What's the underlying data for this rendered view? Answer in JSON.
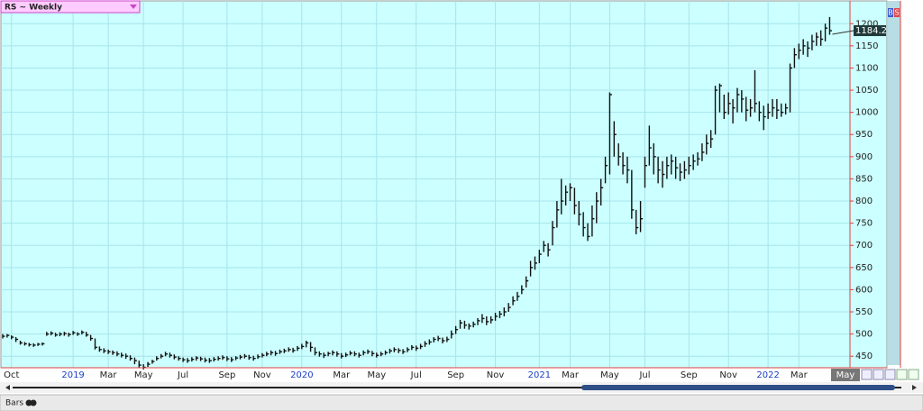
{
  "chart_data": {
    "type": "ohlc",
    "title": "RS ~ Weekly",
    "categories": [
      null,
      null,
      "Oct",
      null,
      null,
      null,
      null,
      null,
      null,
      null,
      null,
      null,
      null,
      null,
      null,
      null,
      "2019",
      null,
      null,
      null,
      null,
      null,
      null,
      null,
      "Mar",
      null,
      null,
      null,
      null,
      null,
      null,
      null,
      "May",
      null,
      null,
      null,
      null,
      null,
      null,
      null,
      null,
      "Jul",
      null,
      null,
      null,
      null,
      null,
      null,
      null,
      null,
      null,
      "Sep",
      null,
      null,
      null,
      null,
      null,
      null,
      null,
      "Nov",
      null,
      null,
      null,
      null,
      null,
      null,
      null,
      null,
      "2020",
      null,
      null,
      null,
      null,
      null,
      null,
      null,
      null,
      "Mar",
      null,
      null,
      null,
      null,
      null,
      null,
      null,
      "May",
      null,
      null,
      null,
      null,
      null,
      null,
      null,
      null,
      "Jul",
      null,
      null,
      null,
      null,
      null,
      null,
      null,
      null,
      "Sep",
      null,
      null,
      null,
      null,
      null,
      null,
      null,
      null,
      "Nov",
      null,
      null,
      null,
      null,
      null,
      null,
      null,
      null,
      null,
      "2021",
      null,
      null,
      null,
      null,
      null,
      null,
      "Mar",
      null,
      null,
      null,
      null,
      null,
      null,
      null,
      null,
      "May",
      null,
      null,
      null,
      null,
      null,
      null,
      null,
      "Jul",
      null,
      null,
      null,
      null,
      null,
      null,
      null,
      null,
      null,
      "Sep",
      null,
      null,
      null,
      null,
      null,
      null,
      null,
      null,
      "Nov",
      null,
      null,
      null,
      null,
      null,
      null,
      null,
      null,
      "2022",
      null,
      null,
      null,
      null,
      null,
      null,
      "Mar",
      null,
      null,
      null,
      null,
      null,
      null,
      null
    ],
    "high": [
      500,
      500,
      497,
      493,
      485,
      482,
      480,
      479,
      480,
      481,
      505,
      506,
      503,
      504,
      505,
      503,
      507,
      504,
      508,
      505,
      498,
      490,
      472,
      468,
      465,
      463,
      461,
      458,
      456,
      452,
      447,
      440,
      432,
      437,
      442,
      450,
      455,
      460,
      458,
      454,
      450,
      447,
      446,
      448,
      450,
      449,
      447,
      446,
      448,
      450,
      452,
      450,
      448,
      450,
      453,
      455,
      453,
      451,
      454,
      457,
      460,
      463,
      462,
      465,
      467,
      470,
      469,
      473,
      478,
      485,
      482,
      470,
      461,
      458,
      460,
      463,
      461,
      457,
      458,
      462,
      461,
      458,
      463,
      465,
      462,
      458,
      460,
      463,
      467,
      470,
      468,
      466,
      470,
      475,
      474,
      478,
      484,
      488,
      493,
      496,
      492,
      494,
      508,
      518,
      532,
      530,
      524,
      528,
      536,
      545,
      540,
      540,
      548,
      552,
      560,
      570,
      585,
      595,
      610,
      630,
      665,
      675,
      690,
      710,
      705,
      755,
      800,
      850,
      835,
      840,
      830,
      800,
      775,
      750,
      790,
      820,
      850,
      900,
      1045,
      980,
      930,
      910,
      900,
      870,
      780,
      800,
      900,
      970,
      930,
      900,
      890,
      900,
      905,
      900,
      885,
      890,
      900,
      905,
      910,
      930,
      950,
      960,
      1060,
      1065,
      1040,
      1045,
      1030,
      1055,
      1050,
      1035,
      1030,
      1095,
      1025,
      1015,
      1020,
      1030,
      1030,
      1020,
      1020,
      1110,
      1145,
      1155,
      1165,
      1160,
      1175,
      1180,
      1185,
      1200,
      1215
    ],
    "low": [
      490,
      492,
      488,
      482,
      476,
      474,
      472,
      471,
      473,
      474,
      496,
      497,
      494,
      495,
      496,
      494,
      498,
      496,
      499,
      494,
      485,
      465,
      460,
      457,
      455,
      453,
      450,
      447,
      444,
      440,
      432,
      424,
      420,
      426,
      433,
      440,
      445,
      450,
      447,
      443,
      440,
      437,
      435,
      438,
      440,
      439,
      436,
      435,
      438,
      440,
      442,
      439,
      437,
      441,
      443,
      445,
      442,
      440,
      444,
      447,
      450,
      452,
      451,
      455,
      457,
      460,
      458,
      462,
      466,
      470,
      460,
      452,
      449,
      446,
      450,
      452,
      449,
      445,
      448,
      452,
      450,
      447,
      452,
      455,
      450,
      447,
      450,
      453,
      456,
      459,
      457,
      455,
      459,
      464,
      462,
      466,
      471,
      476,
      481,
      484,
      479,
      482,
      490,
      500,
      512,
      512,
      510,
      515,
      520,
      525,
      520,
      524,
      530,
      536,
      540,
      550,
      565,
      575,
      590,
      605,
      630,
      645,
      660,
      685,
      675,
      700,
      740,
      770,
      790,
      800,
      770,
      745,
      720,
      710,
      720,
      750,
      790,
      840,
      860,
      900,
      880,
      860,
      840,
      760,
      725,
      730,
      830,
      880,
      860,
      840,
      830,
      850,
      860,
      850,
      845,
      850,
      860,
      870,
      880,
      890,
      905,
      920,
      950,
      1000,
      985,
      995,
      975,
      1000,
      1000,
      980,
      990,
      1000,
      980,
      960,
      985,
      990,
      985,
      990,
      995,
      1000,
      1100,
      1120,
      1130,
      1125,
      1140,
      1150,
      1150,
      1160,
      1175
    ],
    "close": [
      495,
      497,
      493,
      488,
      480,
      478,
      476,
      475,
      477,
      478,
      500,
      502,
      498,
      500,
      501,
      499,
      503,
      500,
      504,
      498,
      490,
      470,
      465,
      462,
      460,
      458,
      455,
      452,
      450,
      445,
      440,
      430,
      425,
      432,
      438,
      445,
      450,
      455,
      452,
      448,
      445,
      442,
      440,
      443,
      446,
      444,
      441,
      440,
      443,
      445,
      447,
      444,
      442,
      446,
      448,
      450,
      447,
      445,
      449,
      452,
      455,
      458,
      456,
      460,
      462,
      465,
      463,
      468,
      472,
      480,
      470,
      458,
      455,
      452,
      456,
      458,
      455,
      450,
      453,
      457,
      455,
      452,
      458,
      460,
      456,
      452,
      455,
      458,
      462,
      465,
      463,
      460,
      465,
      470,
      468,
      472,
      478,
      482,
      488,
      490,
      485,
      488,
      500,
      510,
      525,
      520,
      518,
      522,
      530,
      535,
      528,
      532,
      540,
      545,
      550,
      560,
      575,
      585,
      600,
      620,
      650,
      660,
      680,
      700,
      690,
      740,
      780,
      800,
      820,
      830,
      790,
      770,
      740,
      720,
      760,
      800,
      830,
      880,
      1040,
      950,
      900,
      880,
      870,
      780,
      740,
      760,
      880,
      920,
      900,
      870,
      860,
      880,
      890,
      875,
      865,
      870,
      880,
      890,
      895,
      910,
      930,
      940,
      1050,
      1060,
      1000,
      1020,
      1010,
      1040,
      1030,
      1005,
      1010,
      1020,
      1000,
      990,
      1000,
      1010,
      1005,
      1000,
      1010,
      1100,
      1130,
      1140,
      1150,
      1145,
      1160,
      1170,
      1165,
      1190,
      1184.2
    ],
    "cursor_label": "May",
    "ylim": [
      424,
      1229
    ],
    "yticks": [
      450,
      500,
      550,
      600,
      650,
      700,
      750,
      800,
      850,
      900,
      950,
      1000,
      1050,
      1100,
      1150,
      1200
    ],
    "grid": true,
    "color": "#111111"
  },
  "ui": {
    "footer_label": "Bars",
    "buttons": [
      "B",
      "S"
    ]
  }
}
